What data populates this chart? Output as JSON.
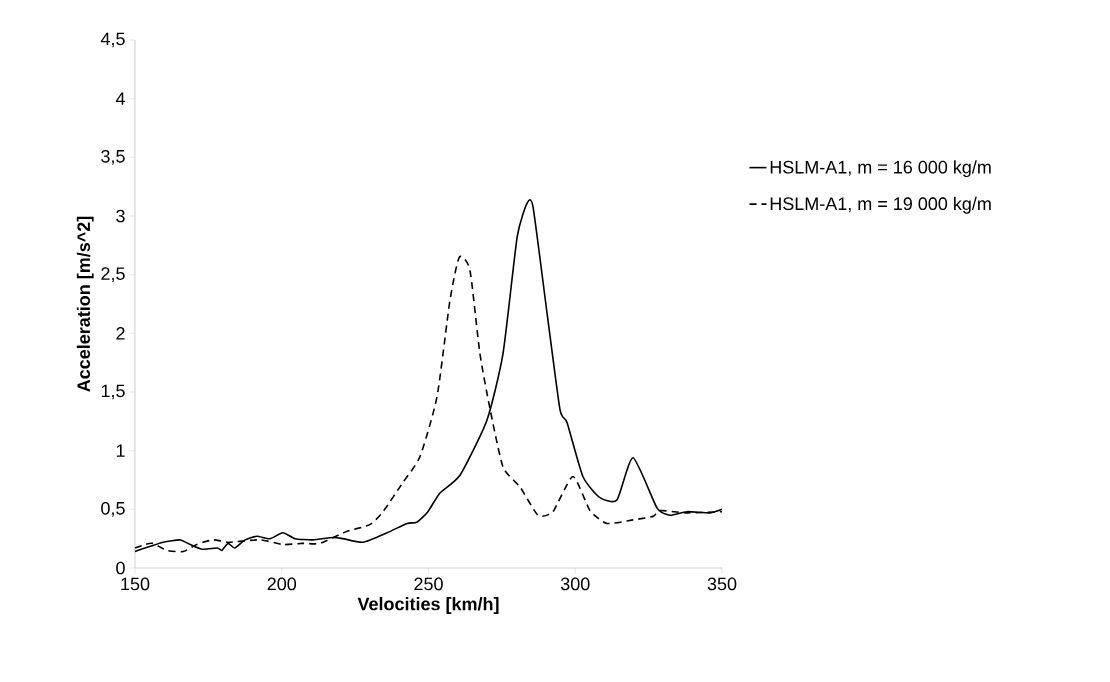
{
  "chart_data": {
    "type": "line",
    "xlabel": "Velocities [km/h]",
    "ylabel": "Acceleration [m/s^2]",
    "xlim": [
      150,
      350
    ],
    "xticks": [
      150,
      200,
      250,
      300,
      350
    ],
    "ylim": [
      0,
      4.5
    ],
    "yticks": [
      0,
      {
        "value": 0.5,
        "label": "0,5"
      },
      1,
      {
        "value": 1.5,
        "label": "1,5"
      },
      2,
      {
        "value": 2.5,
        "label": "2,5"
      },
      3,
      {
        "value": 3.5,
        "label": "3,5"
      },
      4,
      {
        "value": 4.5,
        "label": "4,5"
      }
    ],
    "legend": "right",
    "marker": "none",
    "series": [
      {
        "name": "HSLM-A1, m = 16 000 kg/m",
        "color": "#000000",
        "line_style": "solid",
        "x": [
          150,
          153.4,
          159.6,
          165.3,
          168,
          172.8,
          178,
          179.6,
          181.7,
          184,
          187.5,
          191.5,
          196,
          200.4,
          204.5,
          210.6,
          217.5,
          220.9,
          227.7,
          235.9,
          242.7,
          246,
          249.8,
          253.9,
          260.7,
          269.9,
          275.4,
          280.2,
          283.6,
          285.6,
          290.4,
          294.8,
          297.2,
          302.6,
          308.4,
          314.2,
          319.7,
          327.9,
          332.3,
          338,
          345.9,
          350
        ],
        "values": [
          0.14,
          0.17,
          0.22,
          0.24,
          0.21,
          0.16,
          0.17,
          0.15,
          0.21,
          0.17,
          0.24,
          0.27,
          0.25,
          0.3,
          0.25,
          0.24,
          0.26,
          0.25,
          0.22,
          0.3,
          0.38,
          0.39,
          0.48,
          0.64,
          0.79,
          1.26,
          1.83,
          2.82,
          3.11,
          3.08,
          2.17,
          1.35,
          1.24,
          0.78,
          0.6,
          0.58,
          0.94,
          0.51,
          0.45,
          0.48,
          0.47,
          0.5
        ]
      },
      {
        "name": "HSLM-A1, m = 19 000 kg/m",
        "color": "#000000",
        "line_style": "dashed",
        "x": [
          150,
          153.4,
          156,
          160.9,
          166.4,
          171,
          176.6,
          182,
          192.6,
          200.4,
          207,
          213,
          222,
          230,
          234.5,
          241.3,
          247.1,
          252.9,
          257.3,
          260.5,
          264.1,
          267.5,
          271,
          275.4,
          281.2,
          287.3,
          292.4,
          299.2,
          305,
          310.8,
          319.7,
          326.5,
          328.9,
          338,
          350
        ],
        "values": [
          0.17,
          0.2,
          0.21,
          0.15,
          0.14,
          0.2,
          0.24,
          0.22,
          0.24,
          0.2,
          0.21,
          0.21,
          0.31,
          0.37,
          0.48,
          0.73,
          0.95,
          1.46,
          2.28,
          2.65,
          2.54,
          1.83,
          1.35,
          0.86,
          0.69,
          0.45,
          0.48,
          0.78,
          0.49,
          0.38,
          0.41,
          0.44,
          0.49,
          0.47,
          0.48
        ]
      }
    ]
  }
}
